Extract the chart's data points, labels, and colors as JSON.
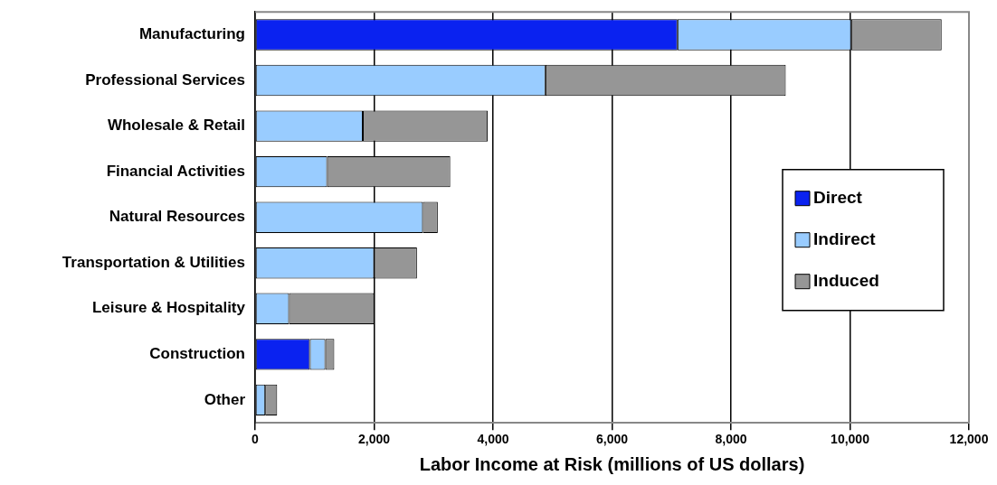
{
  "chart_data": {
    "type": "bar",
    "orientation": "horizontal",
    "stacked": true,
    "xlabel": "Labor Income at Risk (millions of US dollars)",
    "categories": [
      "Manufacturing",
      "Professional Services",
      "Wholesale & Retail",
      "Financial Activities",
      "Natural Resources",
      "Transportation & Utilities",
      "Leisure & Hospitality",
      "Construction",
      "Other"
    ],
    "series": [
      {
        "name": "Direct",
        "color": "#0a22f0",
        "values": [
          7100,
          0,
          0,
          0,
          0,
          0,
          0,
          920,
          0
        ]
      },
      {
        "name": "Indirect",
        "color": "#99ccff",
        "values": [
          2920,
          4880,
          1810,
          1210,
          2820,
          2000,
          570,
          260,
          170
        ]
      },
      {
        "name": "Induced",
        "color": "#969696",
        "values": [
          1520,
          4040,
          2100,
          2070,
          250,
          720,
          1430,
          150,
          200
        ]
      }
    ],
    "xlim": [
      0,
      12000
    ],
    "xticks": [
      {
        "value": 0,
        "label": "0"
      },
      {
        "value": 2000,
        "label": "2,000"
      },
      {
        "value": 4000,
        "label": "4,000"
      },
      {
        "value": 6000,
        "label": "6,000"
      },
      {
        "value": 8000,
        "label": "8,000"
      },
      {
        "value": 10000,
        "label": "10,000"
      },
      {
        "value": 12000,
        "label": "12,000"
      }
    ],
    "grid": "x",
    "legend": "right"
  }
}
